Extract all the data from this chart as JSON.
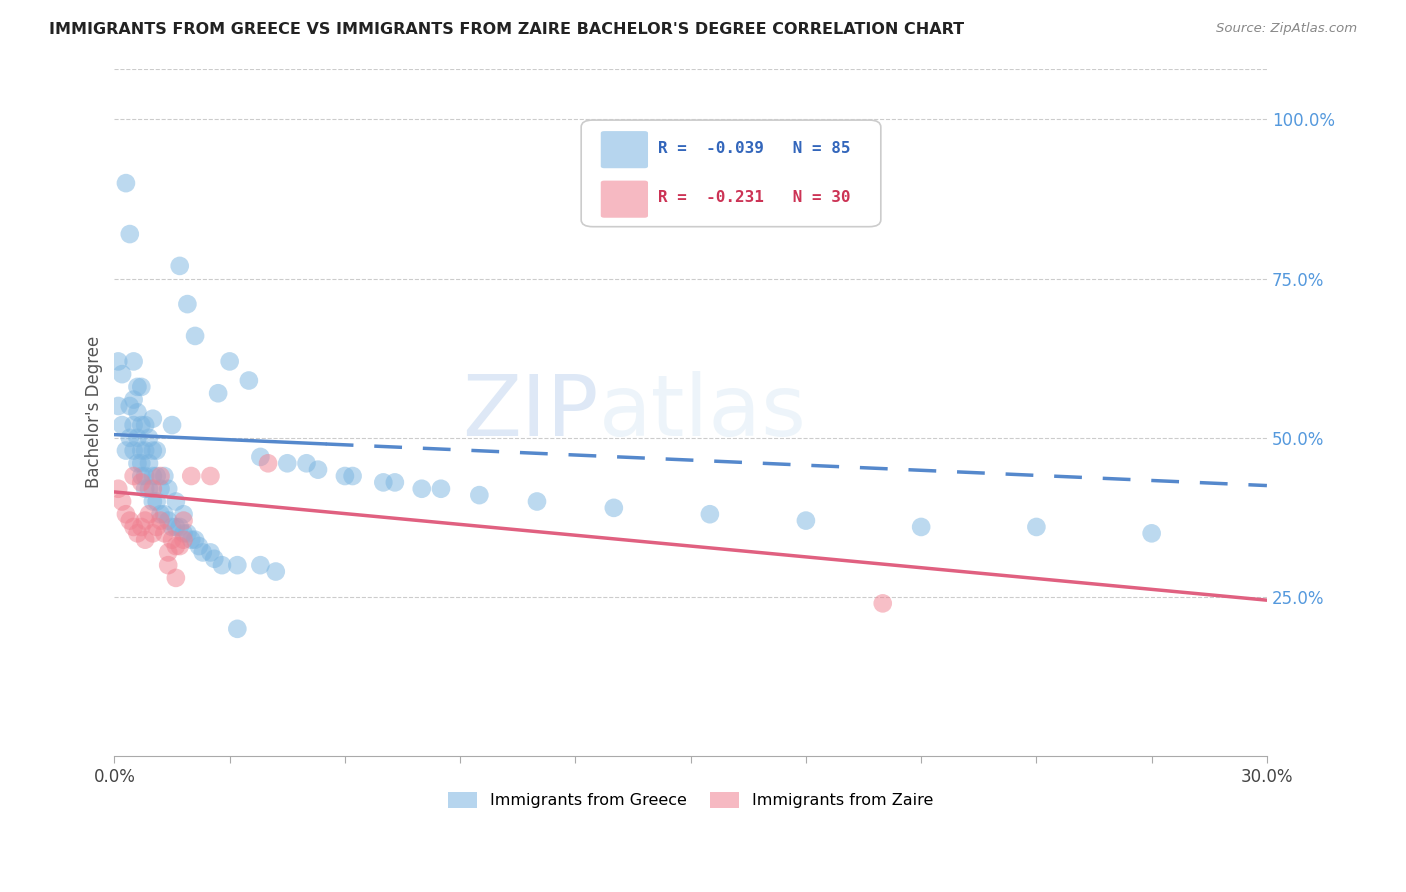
{
  "title": "IMMIGRANTS FROM GREECE VS IMMIGRANTS FROM ZAIRE BACHELOR'S DEGREE CORRELATION CHART",
  "source": "Source: ZipAtlas.com",
  "ylabel": "Bachelor's Degree",
  "right_yticklabels": [
    "25.0%",
    "50.0%",
    "75.0%",
    "100.0%"
  ],
  "right_ytick_vals": [
    0.25,
    0.5,
    0.75,
    1.0
  ],
  "watermark_zip": "ZIP",
  "watermark_atlas": "atlas",
  "greece_color": "#7ab4e0",
  "zaire_color": "#f08090",
  "greece_line_color": "#5588cc",
  "zaire_line_color": "#e06080",
  "right_tick_color": "#5599dd",
  "xlim": [
    0.0,
    0.3
  ],
  "ylim": [
    0.0,
    1.08
  ],
  "legend_label1": "R =  -0.039   N = 85",
  "legend_label2": "R =  -0.231   N = 30",
  "bottom_label1": "Immigrants from Greece",
  "bottom_label2": "Immigrants from Zaire",
  "greece_x": [
    0.001,
    0.001,
    0.002,
    0.002,
    0.003,
    0.003,
    0.004,
    0.004,
    0.004,
    0.005,
    0.005,
    0.005,
    0.005,
    0.006,
    0.006,
    0.006,
    0.006,
    0.007,
    0.007,
    0.007,
    0.007,
    0.007,
    0.008,
    0.008,
    0.008,
    0.008,
    0.009,
    0.009,
    0.009,
    0.01,
    0.01,
    0.01,
    0.01,
    0.011,
    0.011,
    0.011,
    0.012,
    0.012,
    0.013,
    0.013,
    0.014,
    0.014,
    0.015,
    0.015,
    0.016,
    0.016,
    0.017,
    0.018,
    0.018,
    0.019,
    0.02,
    0.021,
    0.022,
    0.023,
    0.025,
    0.026,
    0.028,
    0.03,
    0.032,
    0.035,
    0.038,
    0.042,
    0.05,
    0.06,
    0.07,
    0.08,
    0.095,
    0.11,
    0.13,
    0.155,
    0.18,
    0.21,
    0.24,
    0.27,
    0.017,
    0.019,
    0.021,
    0.027,
    0.032,
    0.038,
    0.045,
    0.053,
    0.062,
    0.073,
    0.085
  ],
  "greece_y": [
    0.55,
    0.62,
    0.52,
    0.6,
    0.48,
    0.9,
    0.82,
    0.55,
    0.5,
    0.48,
    0.52,
    0.56,
    0.62,
    0.46,
    0.5,
    0.54,
    0.58,
    0.44,
    0.46,
    0.48,
    0.52,
    0.58,
    0.42,
    0.44,
    0.48,
    0.52,
    0.42,
    0.46,
    0.5,
    0.4,
    0.44,
    0.48,
    0.53,
    0.4,
    0.44,
    0.48,
    0.38,
    0.42,
    0.38,
    0.44,
    0.37,
    0.42,
    0.36,
    0.52,
    0.36,
    0.4,
    0.36,
    0.35,
    0.38,
    0.35,
    0.34,
    0.34,
    0.33,
    0.32,
    0.32,
    0.31,
    0.3,
    0.62,
    0.3,
    0.59,
    0.3,
    0.29,
    0.46,
    0.44,
    0.43,
    0.42,
    0.41,
    0.4,
    0.39,
    0.38,
    0.37,
    0.36,
    0.36,
    0.35,
    0.77,
    0.71,
    0.66,
    0.57,
    0.2,
    0.47,
    0.46,
    0.45,
    0.44,
    0.43,
    0.42
  ],
  "zaire_x": [
    0.001,
    0.002,
    0.003,
    0.004,
    0.005,
    0.005,
    0.006,
    0.007,
    0.007,
    0.008,
    0.008,
    0.009,
    0.01,
    0.01,
    0.011,
    0.012,
    0.013,
    0.014,
    0.015,
    0.016,
    0.017,
    0.018,
    0.012,
    0.014,
    0.016,
    0.018,
    0.02,
    0.025,
    0.04,
    0.2
  ],
  "zaire_y": [
    0.42,
    0.4,
    0.38,
    0.37,
    0.44,
    0.36,
    0.35,
    0.43,
    0.36,
    0.37,
    0.34,
    0.38,
    0.35,
    0.42,
    0.36,
    0.37,
    0.35,
    0.32,
    0.34,
    0.33,
    0.33,
    0.34,
    0.44,
    0.3,
    0.28,
    0.37,
    0.44,
    0.44,
    0.46,
    0.24
  ],
  "greece_trend_x0": 0.0,
  "greece_trend_y0": 0.505,
  "greece_trend_x1": 0.3,
  "greece_trend_y1": 0.425,
  "zaire_trend_x0": 0.0,
  "zaire_trend_y0": 0.415,
  "zaire_trend_x1": 0.3,
  "zaire_trend_y1": 0.245
}
